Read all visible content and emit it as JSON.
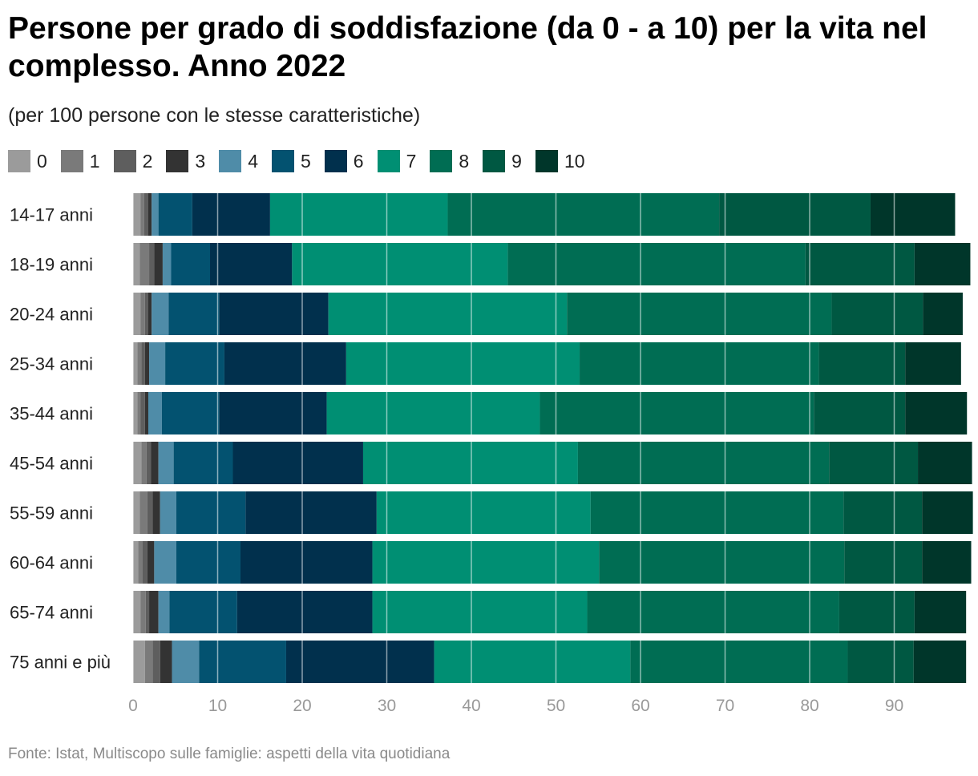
{
  "chart_data": {
    "type": "bar",
    "orientation": "horizontal",
    "stacked": true,
    "title": "Persone per grado di soddisfazione (da 0 - a 10) per la vita nel complesso. Anno 2022",
    "subtitle": "(per 100 persone con le stesse caratteristiche)",
    "source": "Fonte: Istat, Multiscopo sulle famiglie: aspetti della vita quotidiana",
    "categories": [
      "14-17 anni",
      "18-19 anni",
      "20-24 anni",
      "25-34 anni",
      "35-44 anni",
      "45-54 anni",
      "55-59 anni",
      "60-64 anni",
      "65-74 anni",
      "75 anni e più"
    ],
    "series": [
      {
        "name": "0",
        "color": "#9b9b9b",
        "values": [
          0.9,
          0.8,
          0.9,
          0.5,
          0.5,
          1.0,
          0.8,
          0.6,
          0.9,
          1.4
        ]
      },
      {
        "name": "1",
        "color": "#7a7a7a",
        "values": [
          0.4,
          1.1,
          0.5,
          0.5,
          0.4,
          0.6,
          0.9,
          0.5,
          0.6,
          0.9
        ]
      },
      {
        "name": "2",
        "color": "#5e5e5e",
        "values": [
          0.5,
          0.6,
          0.4,
          0.4,
          0.5,
          0.5,
          0.6,
          0.6,
          0.4,
          0.9
        ]
      },
      {
        "name": "3",
        "color": "#333333",
        "values": [
          0.4,
          1.0,
          0.4,
          0.5,
          0.4,
          0.9,
          0.9,
          0.8,
          1.1,
          1.4
        ]
      },
      {
        "name": "4",
        "color": "#4f8ca8",
        "values": [
          0.8,
          1.0,
          2.0,
          1.9,
          1.6,
          1.8,
          1.9,
          2.6,
          1.3,
          3.2
        ]
      },
      {
        "name": "5",
        "color": "#035270",
        "values": [
          4.0,
          4.6,
          6.0,
          7.0,
          6.8,
          7.0,
          8.2,
          7.6,
          8.0,
          10.3
        ]
      },
      {
        "name": "6",
        "color": "#01304d",
        "values": [
          9.2,
          9.7,
          12.9,
          14.4,
          12.7,
          15.4,
          15.5,
          15.6,
          16.0,
          17.5
        ]
      },
      {
        "name": "7",
        "color": "#008f73",
        "values": [
          21.0,
          25.5,
          28.2,
          27.6,
          25.2,
          25.4,
          25.3,
          26.8,
          25.4,
          23.2
        ]
      },
      {
        "name": "8",
        "color": "#006d53",
        "values": [
          32.1,
          35.2,
          31.3,
          28.3,
          32.4,
          29.7,
          29.9,
          29.0,
          29.8,
          25.7
        ]
      },
      {
        "name": "9",
        "color": "#005842",
        "values": [
          17.9,
          12.9,
          10.8,
          10.2,
          10.8,
          10.5,
          9.3,
          9.2,
          8.9,
          7.8
        ]
      },
      {
        "name": "10",
        "color": "#00362a",
        "values": [
          10.0,
          6.6,
          4.7,
          6.6,
          7.3,
          6.4,
          6.0,
          5.8,
          6.1,
          6.2
        ]
      }
    ],
    "xlim": [
      0,
      100
    ],
    "xticks": [
      0,
      10,
      20,
      30,
      40,
      50,
      60,
      70,
      80,
      90
    ],
    "xlabel": "",
    "ylabel": "",
    "grid": true,
    "legend_position": "top-left"
  }
}
